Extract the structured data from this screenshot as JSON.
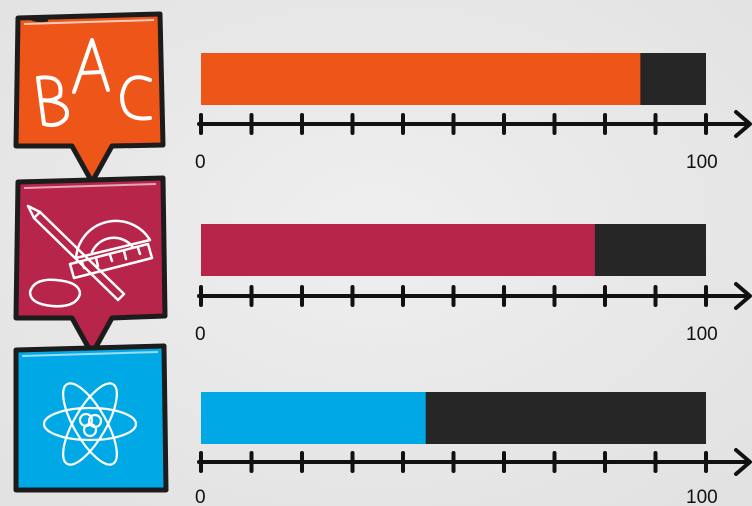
{
  "chart_data": {
    "type": "bar",
    "orientation": "horizontal",
    "axis": {
      "min": 0,
      "max": 100,
      "tick_count": 11,
      "min_label": "0",
      "max_label": "100"
    },
    "grid": false,
    "bars": [
      {
        "category_icon": "abc-letters-icon",
        "value": 87,
        "color": "#ee5519",
        "track_color": "#262626"
      },
      {
        "category_icon": "pencil-protractor-eraser-icon",
        "value": 78,
        "color": "#b7254a",
        "track_color": "#262626"
      },
      {
        "category_icon": "atom-icon",
        "value": 44.5,
        "color": "#00a9e6",
        "track_color": "#262626"
      }
    ]
  }
}
